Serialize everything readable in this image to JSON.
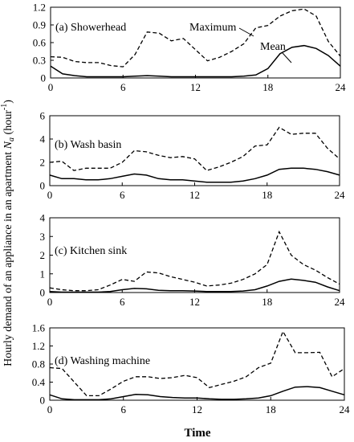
{
  "figure": {
    "ylabel": "Hourly demand of an appliance in an apartment ",
    "ylabel_var": "N",
    "ylabel_sub": "a",
    "ylabel_unit": " (hour",
    "ylabel_sup": "-1",
    "ylabel_close": ")",
    "xlabel": "Time"
  },
  "annotations": {
    "maximum": "Maximum",
    "mean": "Mean"
  },
  "chart_data": [
    {
      "type": "line",
      "title": "(a) Showerhead",
      "x": [
        0,
        1,
        2,
        3,
        4,
        5,
        6,
        7,
        8,
        9,
        10,
        11,
        12,
        13,
        14,
        15,
        16,
        17,
        18,
        19,
        20,
        21,
        22,
        23,
        24
      ],
      "xticks": [
        "0",
        "6",
        "12",
        "18",
        "24"
      ],
      "xlim": [
        0,
        24
      ],
      "ylim": [
        0,
        1.2
      ],
      "yticks": [
        "0",
        "0.3",
        "0.6",
        "0.9",
        "1.2"
      ],
      "series": [
        {
          "name": "Maximum",
          "style": "dashed",
          "values": [
            0.36,
            0.35,
            0.28,
            0.26,
            0.26,
            0.21,
            0.19,
            0.4,
            0.78,
            0.76,
            0.63,
            0.67,
            0.48,
            0.29,
            0.35,
            0.45,
            0.58,
            0.85,
            0.89,
            1.05,
            1.14,
            1.17,
            1.05,
            0.62,
            0.37
          ]
        },
        {
          "name": "Mean",
          "style": "solid",
          "values": [
            0.2,
            0.07,
            0.04,
            0.02,
            0.02,
            0.02,
            0.02,
            0.03,
            0.04,
            0.03,
            0.02,
            0.02,
            0.02,
            0.02,
            0.02,
            0.02,
            0.03,
            0.05,
            0.16,
            0.41,
            0.52,
            0.55,
            0.5,
            0.38,
            0.2
          ]
        }
      ]
    },
    {
      "type": "line",
      "title": "(b) Wash basin",
      "x": [
        0,
        1,
        2,
        3,
        4,
        5,
        6,
        7,
        8,
        9,
        10,
        11,
        12,
        13,
        14,
        15,
        16,
        17,
        18,
        19,
        20,
        21,
        22,
        23,
        24
      ],
      "xticks": [
        "0",
        "6",
        "12",
        "18",
        "24"
      ],
      "xlim": [
        0,
        24
      ],
      "ylim": [
        0,
        6
      ],
      "yticks": [
        "0",
        "2",
        "4",
        "6"
      ],
      "series": [
        {
          "values": [
            2.0,
            2.1,
            1.3,
            1.5,
            1.5,
            1.5,
            2.0,
            3.0,
            2.9,
            2.6,
            2.4,
            2.5,
            2.3,
            1.3,
            1.6,
            2.0,
            2.5,
            3.4,
            3.5,
            5.0,
            4.4,
            4.5,
            4.5,
            3.2,
            2.3
          ]
        },
        {
          "values": [
            0.9,
            0.6,
            0.6,
            0.5,
            0.5,
            0.6,
            0.8,
            1.0,
            0.9,
            0.6,
            0.5,
            0.5,
            0.4,
            0.3,
            0.3,
            0.3,
            0.4,
            0.6,
            0.9,
            1.4,
            1.5,
            1.5,
            1.4,
            1.2,
            0.9
          ]
        }
      ]
    },
    {
      "type": "line",
      "title": "(c) Kitchen sink",
      "x": [
        0,
        1,
        2,
        3,
        4,
        5,
        6,
        7,
        8,
        9,
        10,
        11,
        12,
        13,
        14,
        15,
        16,
        17,
        18,
        19,
        20,
        21,
        22,
        23,
        24
      ],
      "xticks": [
        "0",
        "6",
        "12",
        "18",
        "24"
      ],
      "xlim": [
        0,
        24
      ],
      "ylim": [
        0,
        4
      ],
      "yticks": [
        "0",
        "1",
        "2",
        "3",
        "4"
      ],
      "series": [
        {
          "values": [
            0.25,
            0.15,
            0.1,
            0.1,
            0.15,
            0.4,
            0.7,
            0.6,
            1.1,
            1.05,
            0.85,
            0.7,
            0.55,
            0.35,
            0.4,
            0.5,
            0.7,
            1.0,
            1.5,
            3.25,
            2.0,
            1.5,
            1.2,
            0.8,
            0.45
          ]
        },
        {
          "values": [
            0.05,
            0.02,
            0.02,
            0.02,
            0.02,
            0.05,
            0.15,
            0.22,
            0.2,
            0.12,
            0.1,
            0.1,
            0.08,
            0.05,
            0.05,
            0.05,
            0.08,
            0.15,
            0.35,
            0.6,
            0.72,
            0.65,
            0.55,
            0.3,
            0.1
          ]
        }
      ]
    },
    {
      "type": "line",
      "title": "(d) Washing machine",
      "x": [
        0,
        1,
        2,
        3,
        4,
        5,
        6,
        7,
        8,
        9,
        10,
        11,
        12,
        13,
        14,
        15,
        16,
        17,
        18,
        19,
        20,
        21,
        22,
        23,
        24
      ],
      "xticks": [
        "0",
        "6",
        "12",
        "18",
        "24"
      ],
      "xlim": [
        0,
        24
      ],
      "ylim": [
        0,
        1.6
      ],
      "yticks": [
        "0",
        "0.4",
        "0.8",
        "1.2",
        "1.6"
      ],
      "series": [
        {
          "values": [
            0.72,
            0.7,
            0.4,
            0.1,
            0.1,
            0.25,
            0.42,
            0.52,
            0.52,
            0.48,
            0.5,
            0.55,
            0.5,
            0.28,
            0.35,
            0.42,
            0.52,
            0.72,
            0.82,
            1.52,
            1.05,
            1.05,
            1.06,
            0.52,
            0.7
          ]
        },
        {
          "values": [
            0.12,
            0.03,
            0.01,
            0.01,
            0.01,
            0.03,
            0.08,
            0.13,
            0.12,
            0.08,
            0.06,
            0.05,
            0.05,
            0.03,
            0.02,
            0.02,
            0.03,
            0.05,
            0.1,
            0.2,
            0.29,
            0.3,
            0.28,
            0.2,
            0.12
          ]
        }
      ]
    }
  ]
}
